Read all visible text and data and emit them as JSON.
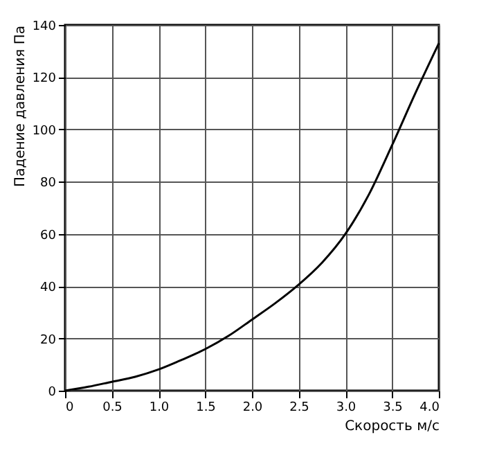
{
  "chart_data": {
    "type": "line",
    "xlabel": "Скорость м/с",
    "ylabel": "Падение давления Па",
    "x": [
      0,
      0.25,
      0.5,
      0.75,
      1.0,
      1.25,
      1.5,
      1.75,
      2.0,
      2.25,
      2.5,
      2.75,
      3.0,
      3.25,
      3.5,
      3.75,
      4.0
    ],
    "series": [
      {
        "color": "#000000",
        "values": [
          0,
          1.5,
          3.4,
          5.3,
          8.1,
          11.8,
          15.9,
          21,
          27.2,
          33.5,
          40.6,
          49,
          60,
          75,
          94,
          114,
          133
        ]
      }
    ],
    "xlim": [
      0,
      4
    ],
    "ylim": [
      0,
      140
    ],
    "xticks": [
      0,
      0.5,
      {
        "value": 1,
        "label": "1.0"
      },
      1.5,
      {
        "value": 2,
        "label": "2.0"
      },
      2.5,
      {
        "value": 3,
        "label": "3.0"
      },
      3.5,
      {
        "value": 4,
        "label": "4.0"
      }
    ],
    "yticks": [
      0,
      20,
      40,
      60,
      80,
      100,
      120,
      140
    ],
    "grid": true,
    "marker": "none",
    "line_style": "solid"
  }
}
